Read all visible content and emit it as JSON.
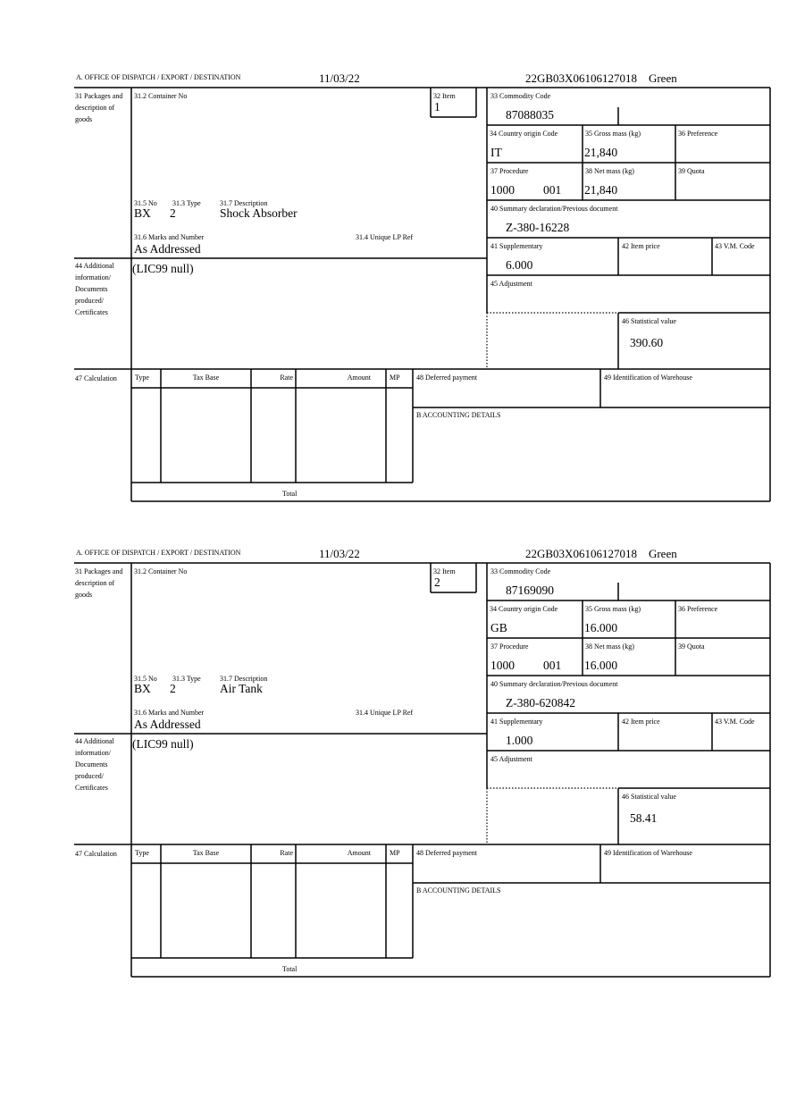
{
  "header_label": "A. OFFICE OF DISPATCH / EXPORT / DESTINATION",
  "labels": {
    "packages": "31 Packages and description of goods",
    "container_no": "31.2 Container No",
    "item": "32 Item",
    "no": "31.5 No",
    "type": "31.3 Type",
    "description": "31.7 Description",
    "marks": "31.6 Marks and Number",
    "unique_lp_ref": "31.4 Unique LP Ref",
    "additional_info": "44 Additional information/ Documents produced/ Certificates",
    "calculation": "47 Calculation",
    "calc_type": "Type",
    "calc_tax_base": "Tax Base",
    "calc_rate": "Rate",
    "calc_amount": "Amount",
    "calc_mp": "MP",
    "calc_total": "Total",
    "deferred_payment": "48 Deferred payment",
    "warehouse": "49 Identification of Warehouse",
    "accounting": "B ACCOUNTING DETAILS",
    "commodity_code": "33 Commodity Code",
    "country_origin": "34 Country origin Code",
    "gross_mass": "35 Gross mass (kg)",
    "preference": "36 Preference",
    "procedure": "37 Procedure",
    "net_mass": "38 Net mass (kg)",
    "quota": "39 Quota",
    "summary_declaration": "40 Summary declaration/Previous document",
    "supplementary": "41 Supplementary",
    "item_price": "42 Item price",
    "vm_code": "43 V.M. Code",
    "adjustment": "45 Adjustment",
    "statistical_value": "46 Statistical value"
  },
  "items": [
    {
      "date": "11/03/22",
      "reference": "22GB03X06106127018",
      "route": "Green",
      "item_no": "1",
      "pkg_no": "BX",
      "pkg_type": "2",
      "description": "Shock Absorber",
      "marks": "As Addressed",
      "additional_info": "(LIC99 null)",
      "commodity_code": "87088035",
      "country_origin": "IT",
      "gross_mass": "21,840",
      "procedure": "1000",
      "procedure_add": "001",
      "net_mass": "21,840",
      "summary_declaration": "Z-380-16228",
      "supplementary": "6.000",
      "statistical_value": "390.60"
    },
    {
      "date": "11/03/22",
      "reference": "22GB03X06106127018",
      "route": "Green",
      "item_no": "2",
      "pkg_no": "BX",
      "pkg_type": "2",
      "description": "Air Tank",
      "marks": "As Addressed",
      "additional_info": "(LIC99 null)",
      "commodity_code": "87169090",
      "country_origin": "GB",
      "gross_mass": "16.000",
      "procedure": "1000",
      "procedure_add": "001",
      "net_mass": "16.000",
      "summary_declaration": "Z-380-620842",
      "supplementary": "1.000",
      "statistical_value": "58.41"
    }
  ]
}
